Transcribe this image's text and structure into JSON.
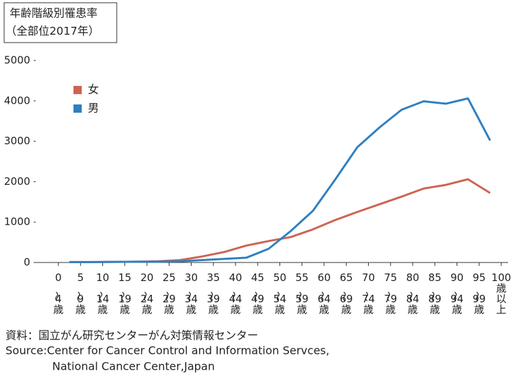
{
  "chart_data": {
    "type": "line",
    "title": "年齢階級別罹患率",
    "subtitle": "（全部位2017年）",
    "categories": [
      "0〜4歳",
      "5〜9歳",
      "10〜14歳",
      "15〜19歳",
      "20〜24歳",
      "25〜29歳",
      "30〜34歳",
      "35〜39歳",
      "40〜44歳",
      "45〜49歳",
      "50〜54歳",
      "55〜59歳",
      "60〜64歳",
      "65〜69歳",
      "70〜74歳",
      "75〜79歳",
      "80〜84歳",
      "85〜89歳",
      "90〜94歳",
      "95〜99歳",
      "100歳以上"
    ],
    "series": [
      {
        "name": "女",
        "color": "#cd6452",
        "values": [
          10,
          10,
          15,
          20,
          30,
          60,
          150,
          260,
          420,
          530,
          630,
          820,
          1050,
          1250,
          1440,
          1630,
          1830,
          1920,
          2060,
          1720,
          null
        ]
      },
      {
        "name": "男",
        "color": "#2f80c1",
        "values": [
          10,
          10,
          15,
          20,
          20,
          30,
          60,
          90,
          120,
          340,
          780,
          1280,
          2050,
          2850,
          3340,
          3780,
          3990,
          3930,
          4060,
          3020,
          null
        ]
      }
    ],
    "ylim": [
      0,
      5000
    ],
    "yticks": [
      0,
      1000,
      2000,
      3000,
      4000,
      5000
    ],
    "grid": false,
    "legend": "upper left",
    "source": [
      "資料：国立がん研究センターがん対策情報センター",
      "Source:Center for Cancer Control and Information Servces,",
      "National Cancer Center,Japan"
    ]
  }
}
